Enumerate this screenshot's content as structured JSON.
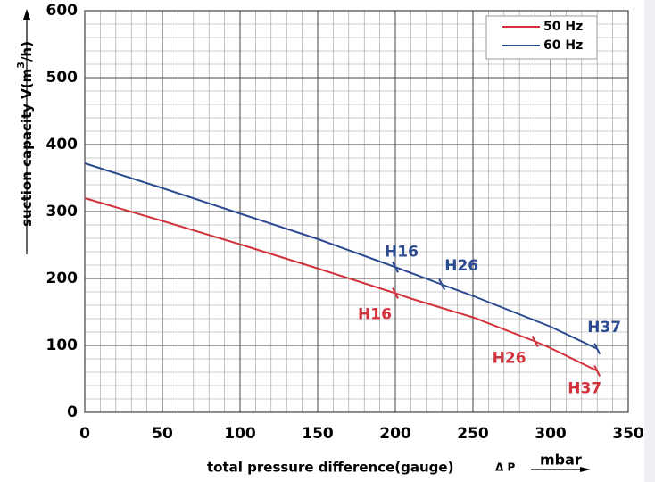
{
  "chart_data": {
    "type": "line",
    "y_label": [
      "suction capacity V(m",
      "3",
      "/h)"
    ],
    "x_label": "total pressure difference(gauge)",
    "x_symbol": "Δ P",
    "x_unit": "mbar",
    "xlim": [
      0,
      350
    ],
    "xticks": [
      0,
      50,
      100,
      150,
      200,
      250,
      300,
      350
    ],
    "ylim": [
      0,
      600
    ],
    "yticks": [
      0,
      100,
      200,
      300,
      400,
      500,
      600
    ],
    "grid": true,
    "legend": "upper right",
    "series": [
      {
        "name": "50 Hz",
        "color": "#d2323c",
        "x": [
          0,
          50,
          100,
          150,
          200,
          210,
          250,
          290,
          300,
          330
        ],
        "values": [
          320,
          286,
          251,
          215,
          178,
          170,
          142,
          106,
          96,
          62
        ],
        "annotations": [
          {
            "text": "H16",
            "x": 200,
            "y": 178
          },
          {
            "text": "H26",
            "x": 290,
            "y": 106
          },
          {
            "text": "H37",
            "x": 330,
            "y": 62
          }
        ]
      },
      {
        "name": "60 Hz",
        "color": "#2c4a90",
        "x": [
          0,
          50,
          100,
          150,
          200,
          230,
          250,
          300,
          330
        ],
        "values": [
          372,
          335,
          297,
          259,
          217,
          191,
          174,
          128,
          95
        ],
        "annotations": [
          {
            "text": "H16",
            "x": 200,
            "y": 217
          },
          {
            "text": "H26",
            "x": 230,
            "y": 191
          },
          {
            "text": "H37",
            "x": 330,
            "y": 95
          }
        ]
      }
    ]
  }
}
